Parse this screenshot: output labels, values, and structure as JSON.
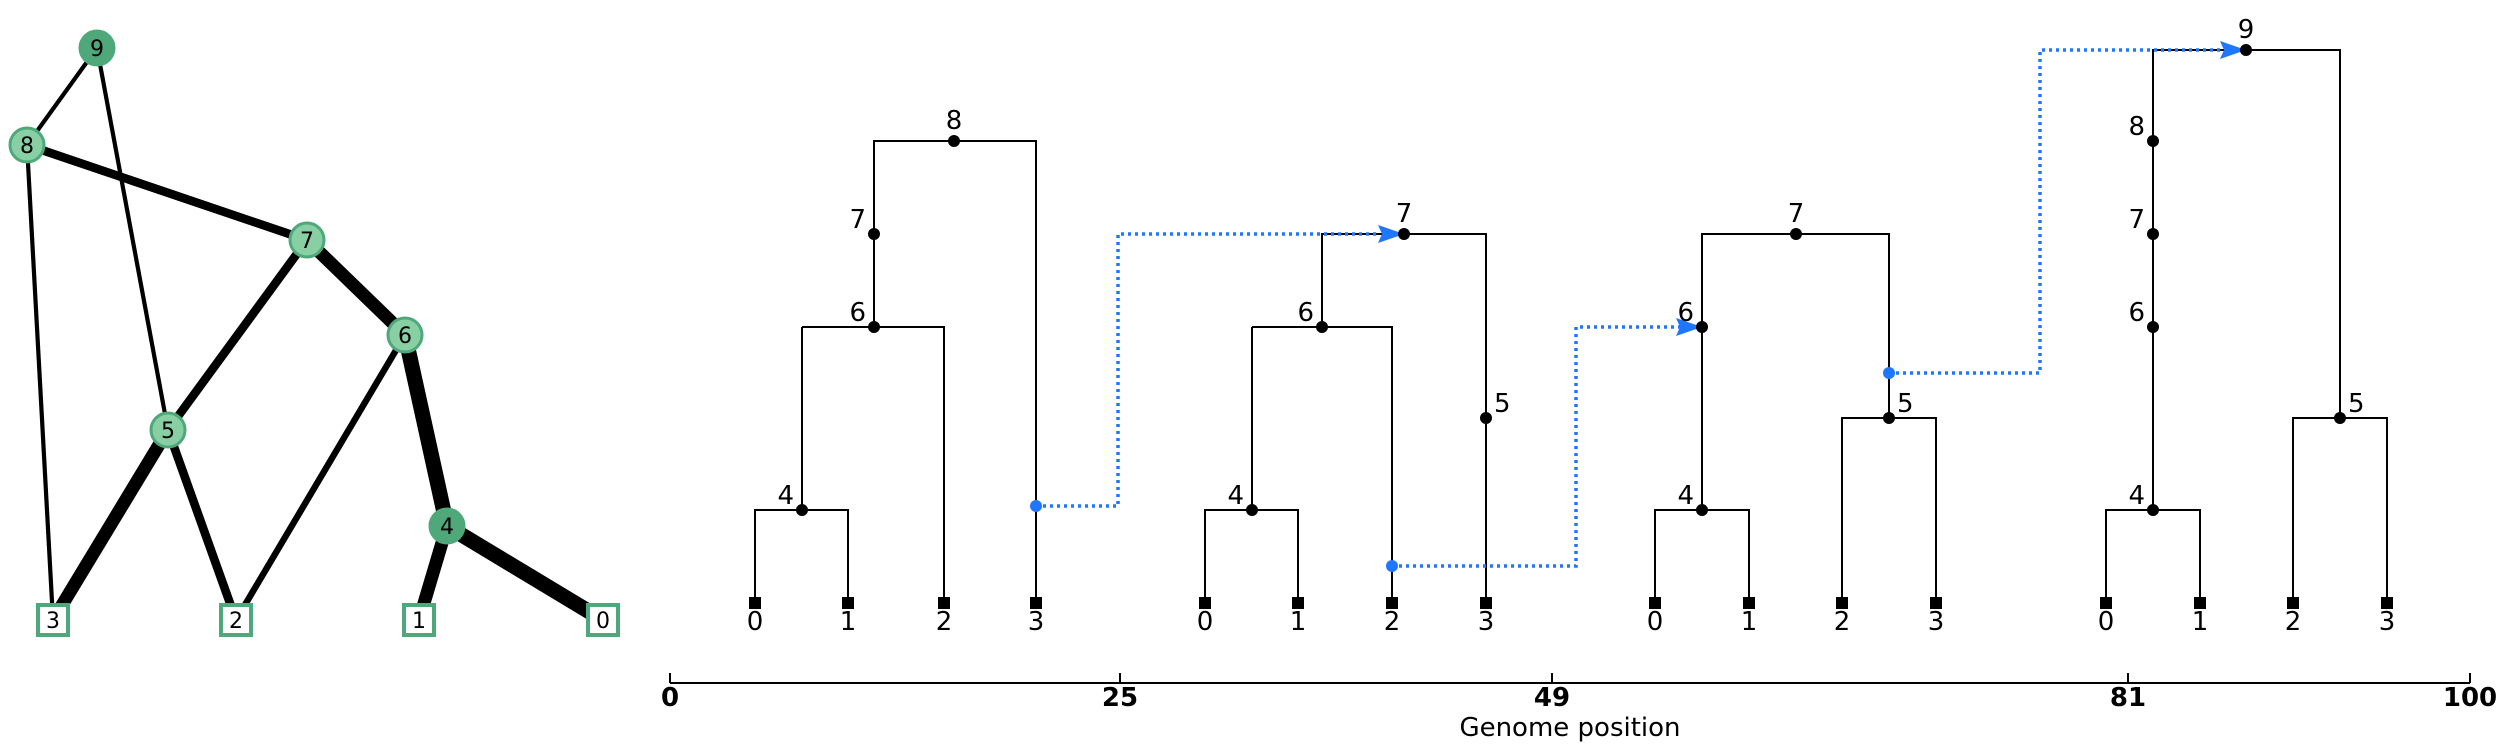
{
  "graph": {
    "nodes": [
      {
        "id": "9",
        "shape": "circle",
        "fill": "#4fa87a",
        "stroke": "#4fa87a"
      },
      {
        "id": "8",
        "shape": "circle",
        "fill": "#88cfa4",
        "stroke": "#4fa87a"
      },
      {
        "id": "7",
        "shape": "circle",
        "fill": "#88cfa4",
        "stroke": "#4fa87a"
      },
      {
        "id": "6",
        "shape": "circle",
        "fill": "#88cfa4",
        "stroke": "#4fa87a"
      },
      {
        "id": "5",
        "shape": "circle",
        "fill": "#88cfa4",
        "stroke": "#4fa87a"
      },
      {
        "id": "4",
        "shape": "circle",
        "fill": "#4fa87a",
        "stroke": "#4fa87a"
      },
      {
        "id": "3",
        "shape": "square",
        "fill": "#ffffff",
        "stroke": "#4fa87a"
      },
      {
        "id": "2",
        "shape": "square",
        "fill": "#ffffff",
        "stroke": "#4fa87a"
      },
      {
        "id": "1",
        "shape": "square",
        "fill": "#ffffff",
        "stroke": "#4fa87a"
      },
      {
        "id": "0",
        "shape": "square",
        "fill": "#ffffff",
        "stroke": "#4fa87a"
      }
    ],
    "edges": [
      {
        "from": "9",
        "to": "8",
        "weight": 1
      },
      {
        "from": "9",
        "to": "5",
        "weight": 1
      },
      {
        "from": "8",
        "to": "7",
        "weight": 3
      },
      {
        "from": "8",
        "to": "3",
        "weight": 1
      },
      {
        "from": "7",
        "to": "6",
        "weight": 5
      },
      {
        "from": "7",
        "to": "5",
        "weight": 3
      },
      {
        "from": "6",
        "to": "4",
        "weight": 6
      },
      {
        "from": "6",
        "to": "2",
        "weight": 2
      },
      {
        "from": "5",
        "to": "3",
        "weight": 5
      },
      {
        "from": "5",
        "to": "2",
        "weight": 3
      },
      {
        "from": "4",
        "to": "1",
        "weight": 5
      },
      {
        "from": "4",
        "to": "0",
        "weight": 6
      }
    ]
  },
  "trees": [
    {
      "interval": [
        0,
        25
      ],
      "leaves": [
        "0",
        "1",
        "2",
        "3"
      ],
      "labels": [
        "8",
        "7",
        "6",
        "4"
      ],
      "leaf_labels": [
        "0",
        "1",
        "2",
        "3"
      ]
    },
    {
      "interval": [
        25,
        49
      ],
      "leaves": [
        "0",
        "1",
        "2",
        "3"
      ],
      "labels": [
        "7",
        "6",
        "5",
        "4"
      ],
      "leaf_labels": [
        "0",
        "1",
        "2",
        "3"
      ]
    },
    {
      "interval": [
        49,
        81
      ],
      "leaves": [
        "0",
        "1",
        "2",
        "3"
      ],
      "labels": [
        "7",
        "6",
        "5",
        "4"
      ],
      "leaf_labels": [
        "0",
        "1",
        "2",
        "3"
      ]
    },
    {
      "interval": [
        81,
        100
      ],
      "leaves": [
        "0",
        "1",
        "2",
        "3"
      ],
      "labels": [
        "9",
        "8",
        "7",
        "6",
        "5",
        "4"
      ],
      "leaf_labels": [
        "0",
        "1",
        "2",
        "3"
      ]
    }
  ],
  "axis": {
    "label": "Genome position",
    "ticks": [
      "0",
      "25",
      "49",
      "81",
      "100"
    ]
  },
  "colors": {
    "recombination": "#1f77ff",
    "node": "#000000",
    "graph_fill_dark": "#4fa87a",
    "graph_fill_light": "#88cfa4"
  }
}
